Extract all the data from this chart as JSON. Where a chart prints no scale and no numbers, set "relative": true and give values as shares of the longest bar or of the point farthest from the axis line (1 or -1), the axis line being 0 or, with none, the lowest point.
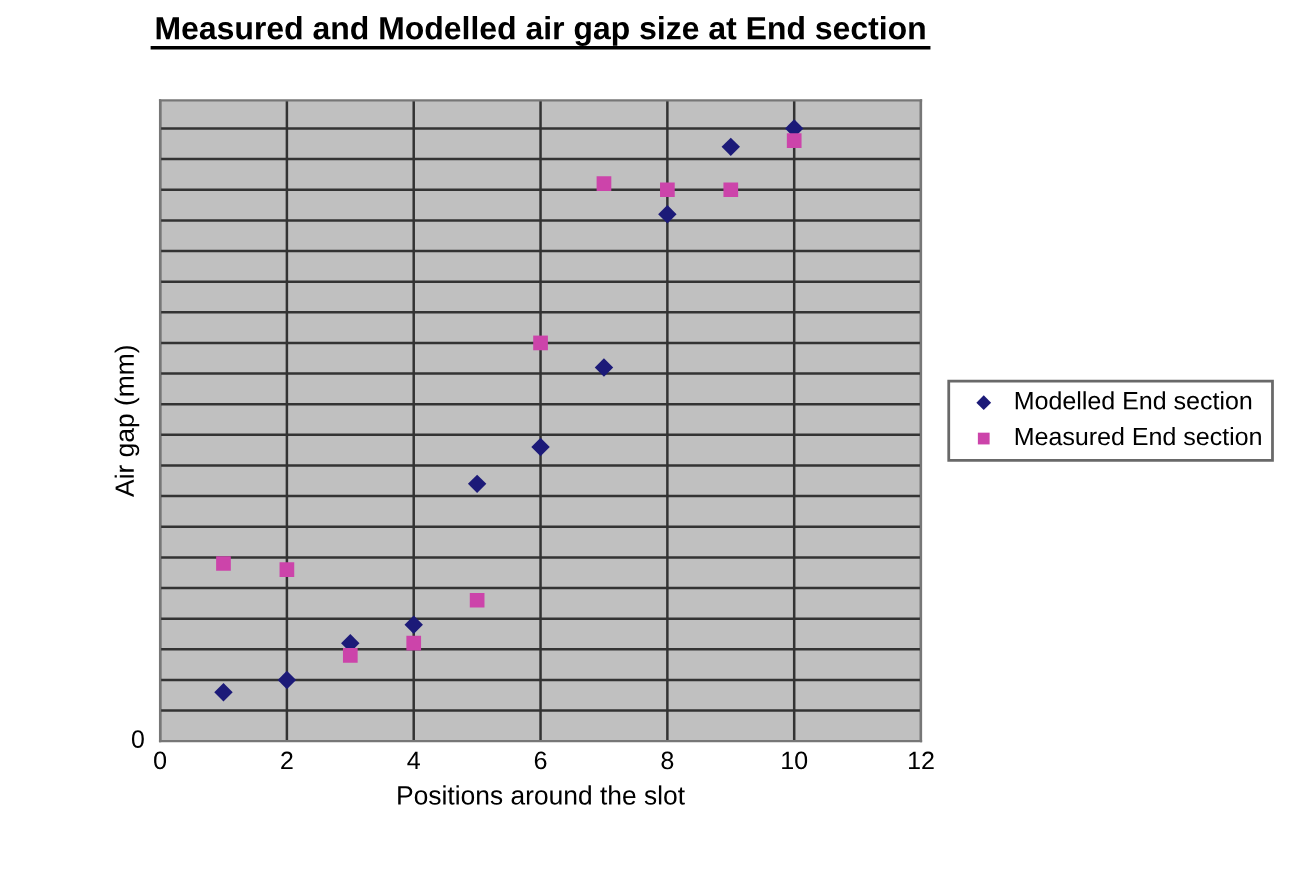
{
  "chart_data": {
    "type": "scatter",
    "title": "Measured and Modelled air gap size at End section",
    "xlabel": "Positions around the slot",
    "ylabel": "Air gap (mm)",
    "relative": true,
    "annotations": [
      "0"
    ],
    "xlim": [
      0,
      12
    ],
    "xticks": [
      0,
      2,
      4,
      6,
      8,
      10,
      12
    ],
    "grid": true,
    "legend": "right",
    "series": [
      {
        "name": "Modelled End section",
        "color": "#1c1a78",
        "marker": "diamond",
        "x": [
          1,
          2,
          3,
          4,
          5,
          6,
          7,
          8,
          9,
          10
        ],
        "values": [
          0.08,
          0.1,
          0.16,
          0.19,
          0.42,
          0.48,
          0.61,
          0.86,
          0.97,
          1
        ]
      },
      {
        "name": "Measured End section",
        "color": "#cc44aa",
        "marker": "square",
        "x": [
          1,
          2,
          3,
          4,
          5,
          6,
          7,
          8,
          9,
          10
        ],
        "values": [
          0.29,
          0.28,
          0.14,
          0.16,
          0.23,
          0.65,
          0.91,
          0.9,
          0.9,
          0.98
        ]
      }
    ]
  }
}
